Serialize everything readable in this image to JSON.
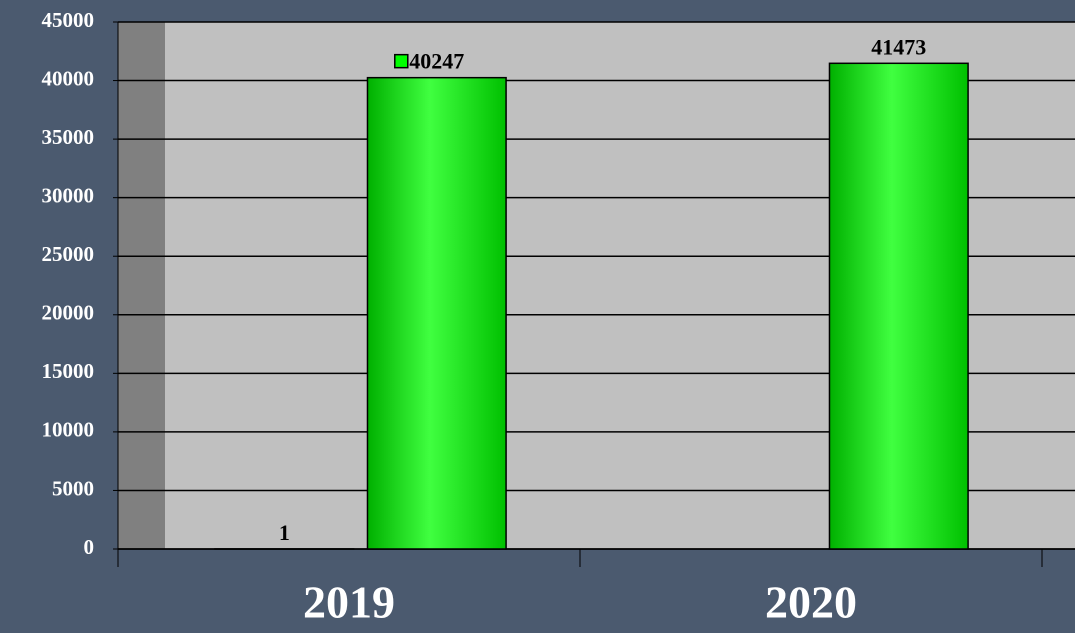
{
  "chart_data": {
    "type": "bar",
    "categories": [
      "2019",
      "2020"
    ],
    "series": [
      {
        "color": "#00ff00",
        "values": [
          1,
          null
        ]
      },
      {
        "color": "#00ff00",
        "values": [
          40247,
          41473
        ]
      }
    ],
    "ylim": [
      0,
      45000
    ],
    "yticks": [
      0,
      5000,
      10000,
      15000,
      20000,
      25000,
      30000,
      35000,
      40000,
      45000
    ],
    "grid": true
  }
}
